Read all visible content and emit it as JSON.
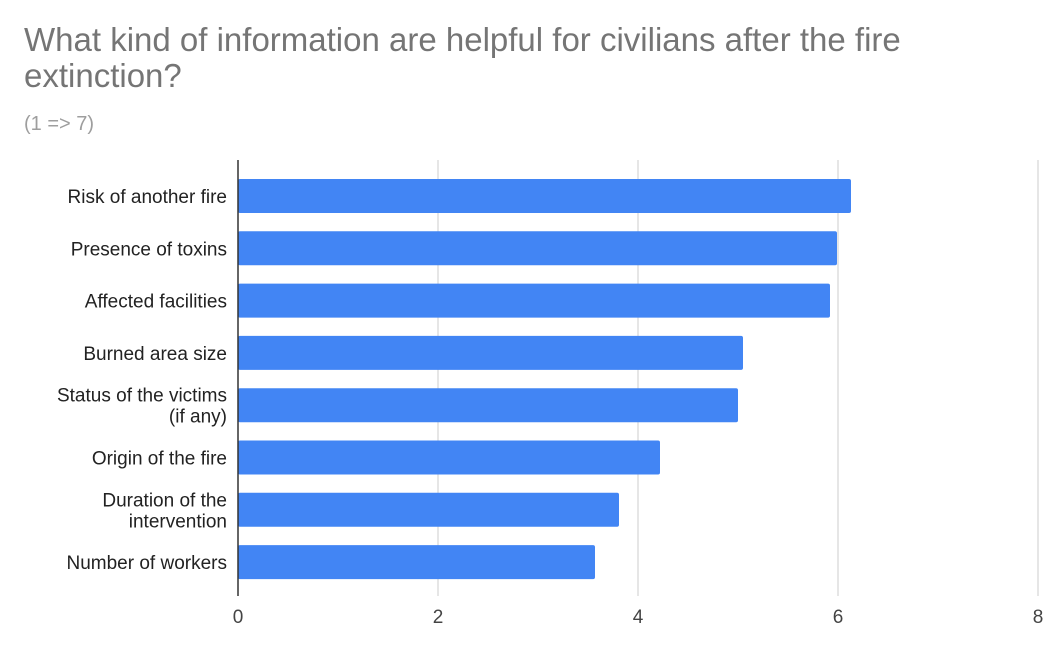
{
  "chart_data": {
    "type": "bar",
    "orientation": "horizontal",
    "title": "What kind of information are helpful for civilians after the fire extinction?",
    "subtitle": "(1 => 7)",
    "categories": [
      "Risk of another fire",
      "Presence of toxins",
      "Affected facilities",
      "Burned area size",
      "Status of the victims (if any)",
      "Origin of the fire",
      "Duration of the intervention",
      "Number of workers"
    ],
    "category_lines": [
      [
        "Risk of another fire"
      ],
      [
        "Presence of toxins"
      ],
      [
        "Affected facilities"
      ],
      [
        "Burned area size"
      ],
      [
        "Status of the victims",
        "(if any)"
      ],
      [
        "Origin of the fire"
      ],
      [
        "Duration of the",
        "intervention"
      ],
      [
        "Number of workers"
      ]
    ],
    "values": [
      6.13,
      5.99,
      5.92,
      5.05,
      5.0,
      4.22,
      3.81,
      3.57
    ],
    "xlim": [
      0,
      8
    ],
    "xticks": [
      "0",
      "2",
      "4",
      "6",
      "8"
    ],
    "xlabel": "",
    "ylabel": "",
    "grid": true,
    "bar_color": "#4285f4"
  }
}
